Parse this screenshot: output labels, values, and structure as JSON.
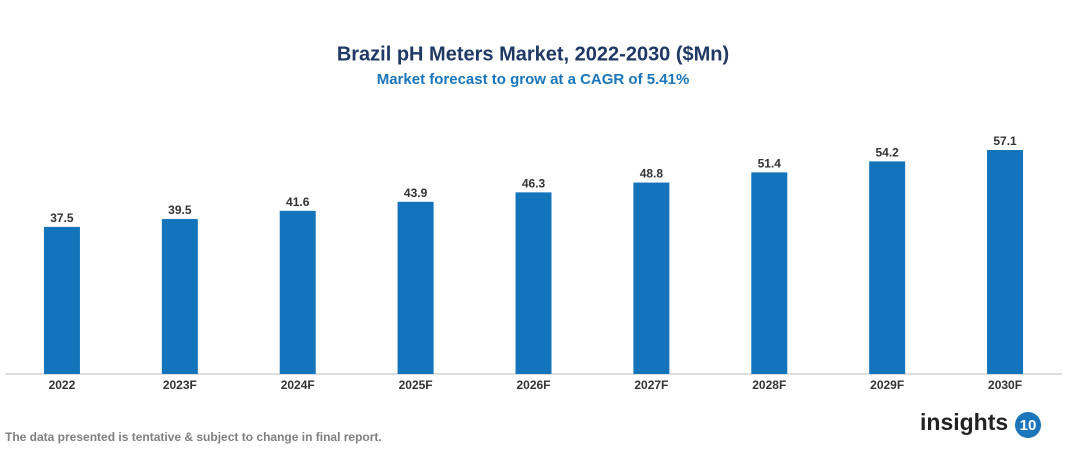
{
  "chart_data": {
    "type": "bar",
    "title": "Brazil pH Meters Market, 2022-2030 ($Mn)",
    "subtitle": "Market forecast to grow at a CAGR of 5.41%",
    "categories": [
      "2022",
      "2023F",
      "2024F",
      "2025F",
      "2026F",
      "2027F",
      "2028F",
      "2029F",
      "2030F"
    ],
    "values": [
      37.5,
      39.5,
      41.6,
      43.9,
      46.3,
      48.8,
      51.4,
      54.2,
      57.1
    ],
    "color": "#1373bb",
    "footnote": "The data presented is tentative & subject to change in final report."
  },
  "brand": {
    "name": "insights",
    "badge": "10"
  }
}
